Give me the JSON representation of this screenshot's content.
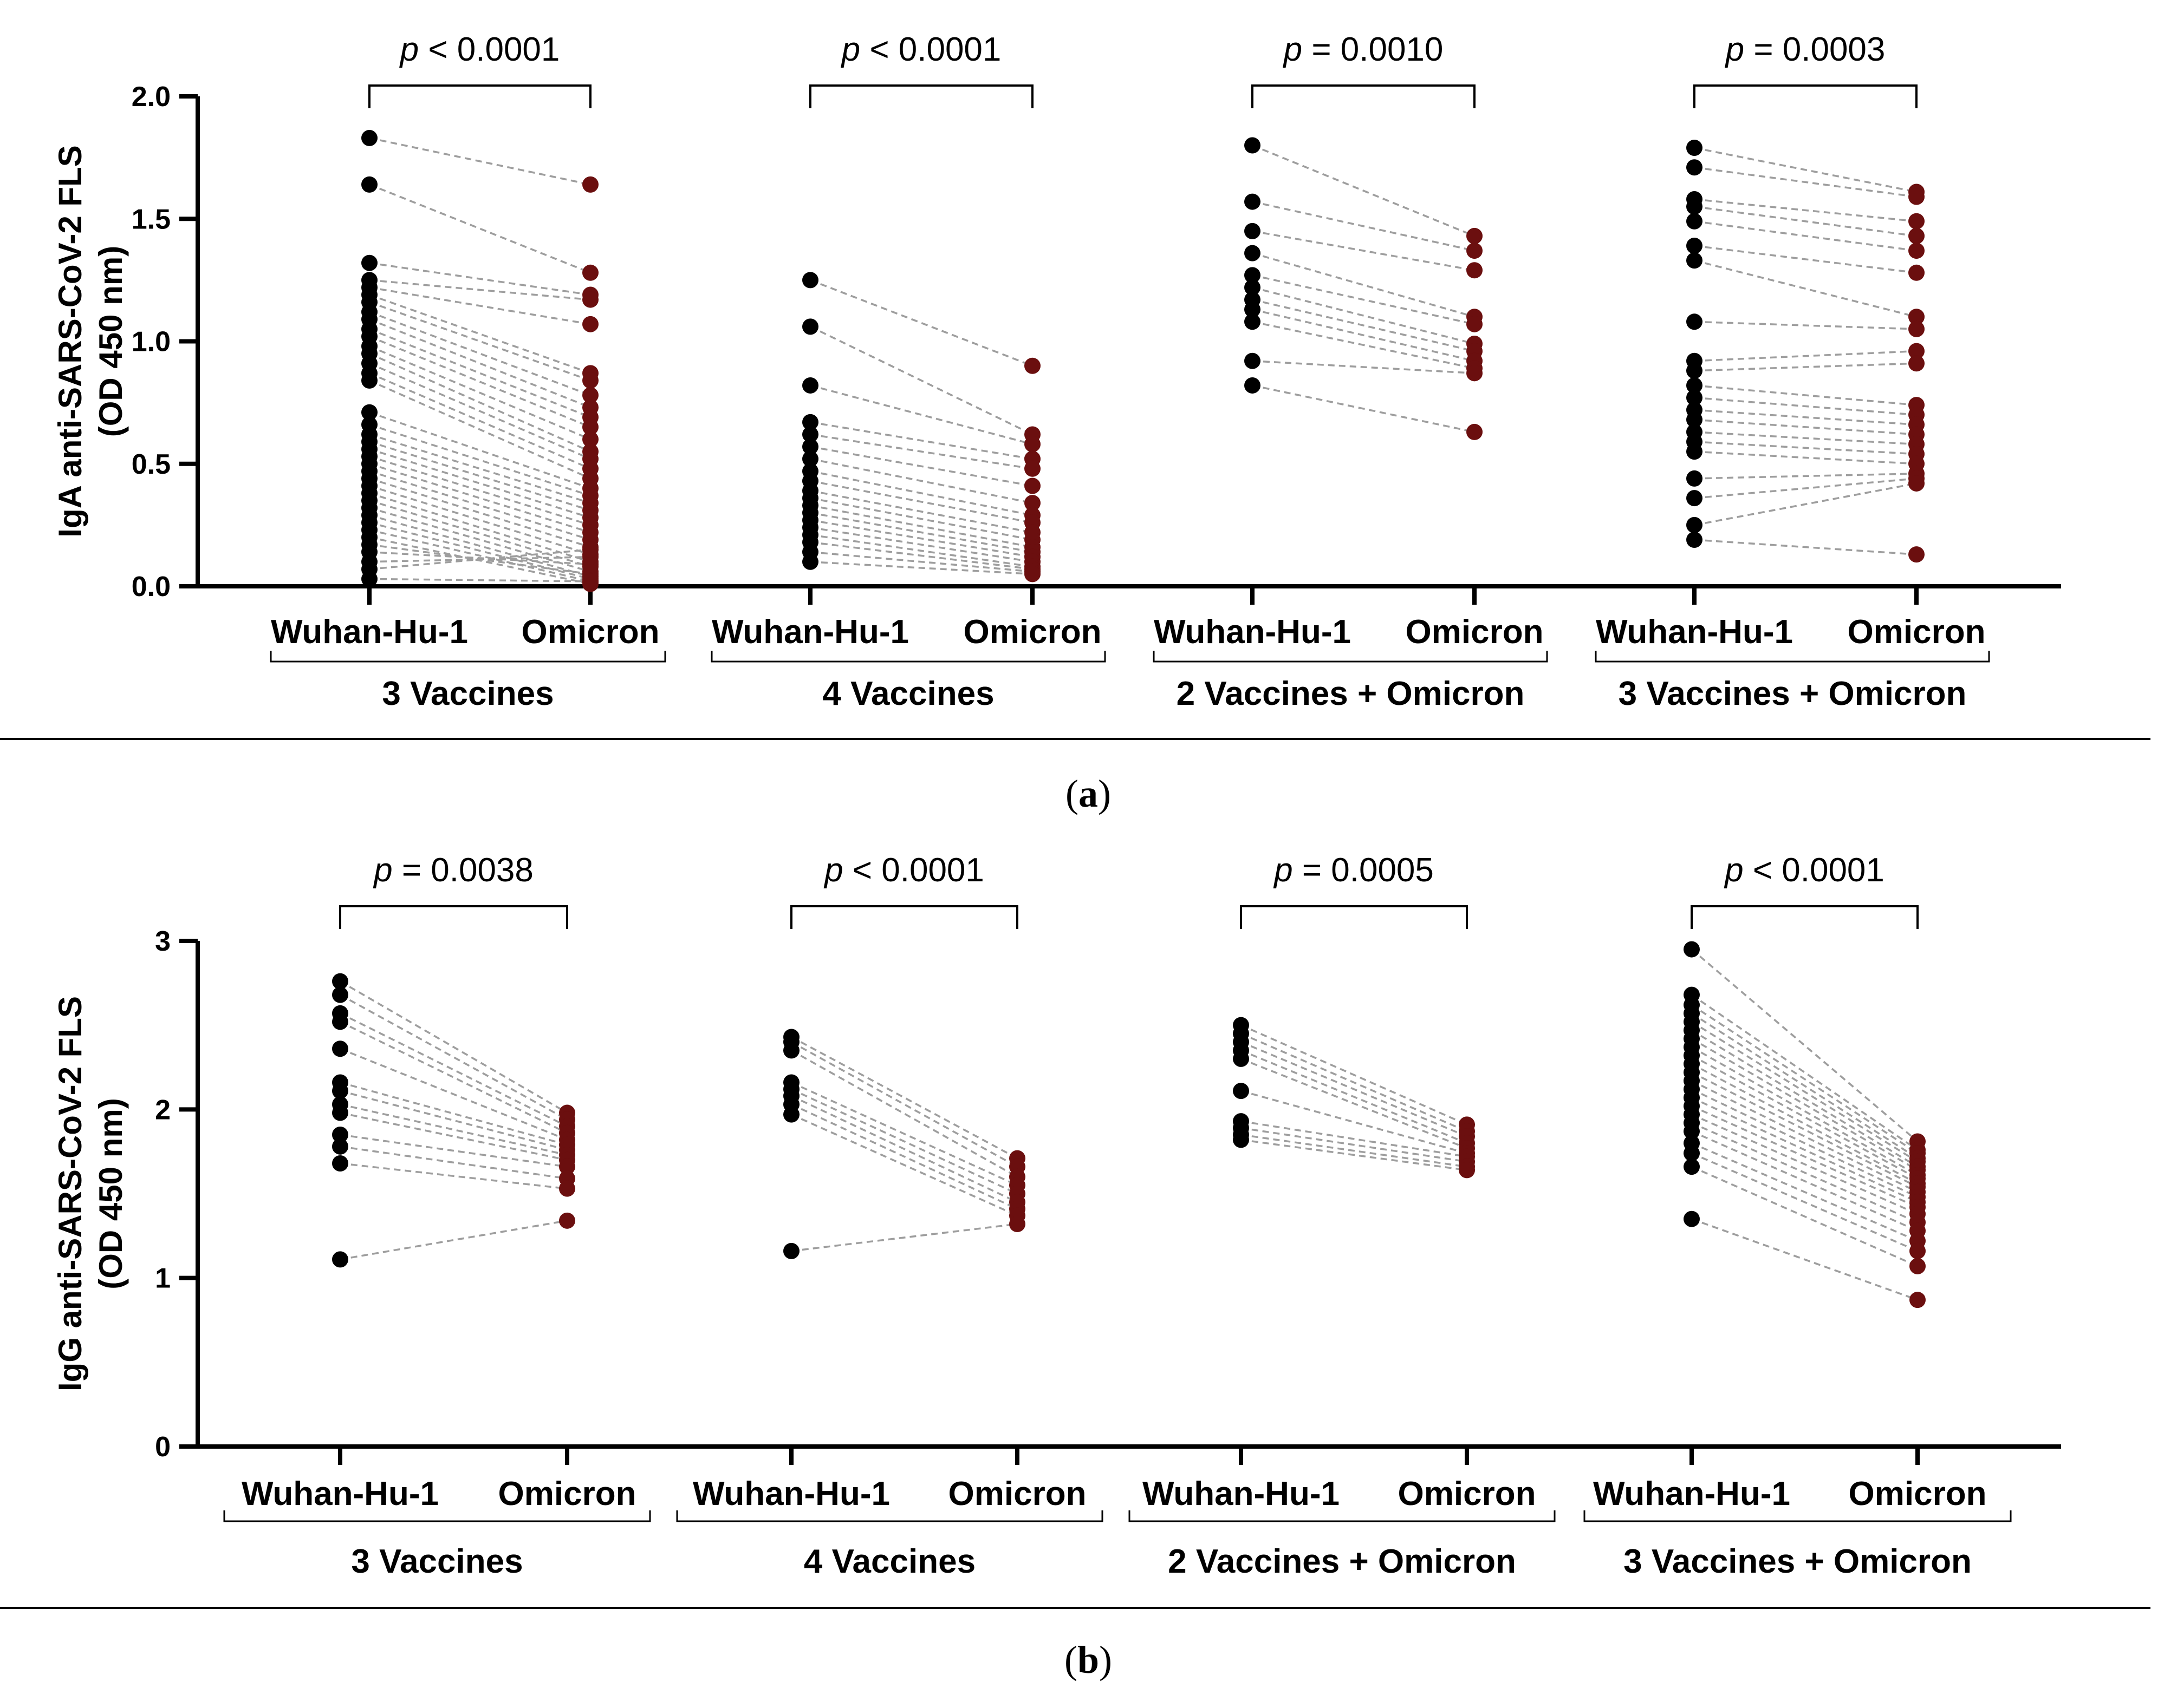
{
  "colors": {
    "wuhan": "#000000",
    "omicron": "#6b0f0f",
    "line": "#9e9e9e",
    "axis": "#000000"
  },
  "chart_data": [
    {
      "panel": "a",
      "type": "scatter",
      "ylabel_line1": "IgA anti-SARS-CoV-2 FLS",
      "ylabel_line2": "(OD 450 nm)",
      "ylim": [
        0,
        2.0
      ],
      "yticks": [
        "0.0",
        "0.5",
        "1.0",
        "1.5",
        "2.0"
      ],
      "ytick_values": [
        0,
        0.5,
        1.0,
        1.5,
        2.0
      ],
      "groups": [
        {
          "name": "3 Vaccines",
          "conditions": [
            "Wuhan-Hu-1",
            "Omicron"
          ],
          "p_prefix": "p",
          "p_rest": " < 0.0001",
          "wuhan": [
            1.83,
            1.64,
            1.32,
            1.25,
            1.22,
            1.19,
            1.16,
            1.12,
            1.09,
            1.05,
            1.02,
            0.98,
            0.95,
            0.91,
            0.87,
            0.84,
            0.71,
            0.66,
            0.62,
            0.59,
            0.56,
            0.53,
            0.5,
            0.47,
            0.44,
            0.41,
            0.38,
            0.35,
            0.32,
            0.29,
            0.26,
            0.23,
            0.2,
            0.17,
            0.14,
            0.1,
            0.07,
            0.03
          ],
          "omicron": [
            1.64,
            1.28,
            1.19,
            1.17,
            1.07,
            0.87,
            0.84,
            0.78,
            0.73,
            0.69,
            0.65,
            0.6,
            0.55,
            0.52,
            0.48,
            0.44,
            0.4,
            0.37,
            0.34,
            0.31,
            0.28,
            0.25,
            0.22,
            0.19,
            0.16,
            0.13,
            0.1,
            0.08,
            0.06,
            0.04,
            0.03,
            0.02,
            0.01,
            0.05,
            0.09,
            0.12,
            0.15,
            0.02
          ]
        },
        {
          "name": "4 Vaccines",
          "conditions": [
            "Wuhan-Hu-1",
            "Omicron"
          ],
          "p_prefix": "p",
          "p_rest": " < 0.0001",
          "wuhan": [
            1.25,
            1.06,
            0.82,
            0.67,
            0.62,
            0.57,
            0.52,
            0.47,
            0.43,
            0.39,
            0.36,
            0.33,
            0.3,
            0.27,
            0.24,
            0.21,
            0.18,
            0.14,
            0.1
          ],
          "omicron": [
            0.9,
            0.62,
            0.58,
            0.52,
            0.48,
            0.41,
            0.34,
            0.29,
            0.26,
            0.22,
            0.19,
            0.16,
            0.14,
            0.12,
            0.1,
            0.08,
            0.07,
            0.06,
            0.05
          ]
        },
        {
          "name": "2 Vaccines + Omicron",
          "conditions": [
            "Wuhan-Hu-1",
            "Omicron"
          ],
          "p_prefix": "p",
          "p_rest": " = 0.0010",
          "wuhan": [
            1.8,
            1.57,
            1.45,
            1.36,
            1.27,
            1.22,
            1.17,
            1.13,
            1.08,
            0.92,
            0.82
          ],
          "omicron": [
            1.43,
            1.37,
            1.29,
            1.1,
            1.07,
            0.99,
            0.96,
            0.92,
            0.89,
            0.87,
            0.63
          ]
        },
        {
          "name": "3 Vaccines + Omicron",
          "conditions": [
            "Wuhan-Hu-1",
            "Omicron"
          ],
          "p_prefix": "p",
          "p_rest": " = 0.0003",
          "wuhan": [
            1.79,
            1.71,
            1.58,
            1.55,
            1.49,
            1.39,
            1.33,
            1.08,
            0.92,
            0.88,
            0.82,
            0.77,
            0.72,
            0.68,
            0.63,
            0.59,
            0.55,
            0.44,
            0.36,
            0.25,
            0.19
          ],
          "omicron": [
            1.61,
            1.59,
            1.49,
            1.43,
            1.37,
            1.28,
            1.1,
            1.05,
            0.96,
            0.91,
            0.74,
            0.7,
            0.66,
            0.62,
            0.58,
            0.54,
            0.5,
            0.46,
            0.44,
            0.42,
            0.13
          ]
        }
      ]
    },
    {
      "panel": "b",
      "type": "scatter",
      "ylabel_line1": "IgG anti-SARS-CoV-2 FLS",
      "ylabel_line2": "(OD 450 nm)",
      "ylim": [
        0,
        3
      ],
      "yticks": [
        "0",
        "1",
        "2",
        "3"
      ],
      "ytick_values": [
        0,
        1,
        2,
        3
      ],
      "groups": [
        {
          "name": "3 Vaccines",
          "conditions": [
            "Wuhan-Hu-1",
            "Omicron"
          ],
          "p_prefix": "p",
          "p_rest": " = 0.0038",
          "wuhan": [
            2.76,
            2.68,
            2.57,
            2.52,
            2.36,
            2.16,
            2.11,
            2.03,
            1.98,
            1.85,
            1.78,
            1.68,
            1.11
          ],
          "omicron": [
            1.98,
            1.94,
            1.9,
            1.86,
            1.82,
            1.79,
            1.76,
            1.73,
            1.7,
            1.66,
            1.59,
            1.53,
            1.34
          ]
        },
        {
          "name": "4 Vaccines",
          "conditions": [
            "Wuhan-Hu-1",
            "Omicron"
          ],
          "p_prefix": "p",
          "p_rest": " < 0.0001",
          "wuhan": [
            2.43,
            2.4,
            2.35,
            2.16,
            2.12,
            2.08,
            2.03,
            1.97,
            1.16
          ],
          "omicron": [
            1.71,
            1.66,
            1.6,
            1.55,
            1.5,
            1.45,
            1.41,
            1.37,
            1.32
          ]
        },
        {
          "name": "2 Vaccines + Omicron",
          "conditions": [
            "Wuhan-Hu-1",
            "Omicron"
          ],
          "p_prefix": "p",
          "p_rest": " = 0.0005",
          "wuhan": [
            2.5,
            2.45,
            2.4,
            2.35,
            2.3,
            2.11,
            1.93,
            1.89,
            1.85,
            1.82
          ],
          "omicron": [
            1.91,
            1.87,
            1.84,
            1.8,
            1.77,
            1.74,
            1.72,
            1.69,
            1.66,
            1.64
          ]
        },
        {
          "name": "3 Vaccines + Omicron",
          "conditions": [
            "Wuhan-Hu-1",
            "Omicron"
          ],
          "p_prefix": "p",
          "p_rest": " < 0.0001",
          "wuhan": [
            2.95,
            2.68,
            2.62,
            2.57,
            2.52,
            2.47,
            2.42,
            2.37,
            2.32,
            2.27,
            2.22,
            2.17,
            2.12,
            2.07,
            2.02,
            1.97,
            1.92,
            1.87,
            1.8,
            1.74,
            1.66,
            1.35
          ],
          "omicron": [
            1.81,
            1.76,
            1.74,
            1.71,
            1.69,
            1.66,
            1.64,
            1.61,
            1.59,
            1.56,
            1.54,
            1.51,
            1.48,
            1.45,
            1.42,
            1.38,
            1.33,
            1.28,
            1.22,
            1.16,
            1.07,
            0.87
          ]
        }
      ]
    }
  ],
  "panel_labels": {
    "a": {
      "open": "(",
      "letter": "a",
      "close": ")"
    },
    "b": {
      "open": "(",
      "letter": "b",
      "close": ")"
    }
  }
}
